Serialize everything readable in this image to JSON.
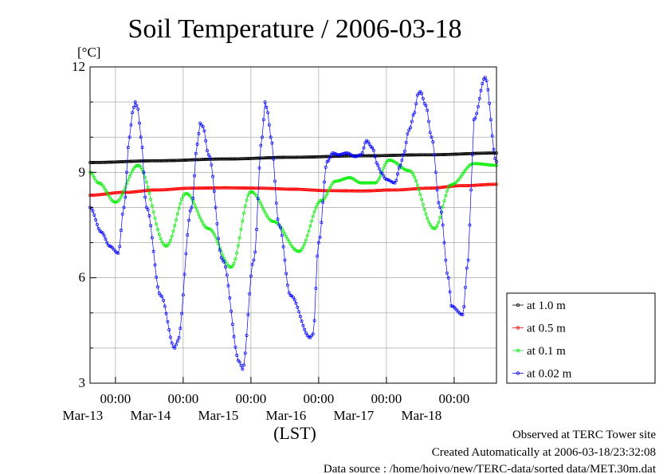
{
  "chart_data": {
    "type": "line",
    "title": "Soil Temperature / 2006-03-18",
    "ylabel": "[°C]",
    "xlabel": "(LST)",
    "ylim": [
      3,
      12
    ],
    "yticks": [
      "3",
      "6",
      "9",
      "12"
    ],
    "xlim": [
      0,
      144
    ],
    "x_unit": "hours since 2006-03-12 15:00 LST",
    "xticks": [
      {
        "x": 9,
        "time": "00:00",
        "date": "Mar-13"
      },
      {
        "x": 33,
        "time": "00:00",
        "date": "Mar-14"
      },
      {
        "x": 57,
        "time": "00:00",
        "date": "Mar-15"
      },
      {
        "x": 81,
        "time": "00:00",
        "date": "Mar-16"
      },
      {
        "x": 105,
        "time": "00:00",
        "date": "Mar-17"
      },
      {
        "x": 129,
        "time": "00:00",
        "date": "Mar-18"
      }
    ],
    "grid": true,
    "legend_position": "right-bottom",
    "series": [
      {
        "name": "at 1.0 m",
        "color": "#000000",
        "x": [
          0,
          24,
          48,
          72,
          96,
          120,
          144
        ],
        "y": [
          9.28,
          9.33,
          9.38,
          9.43,
          9.47,
          9.5,
          9.55
        ]
      },
      {
        "name": "at 0.5 m",
        "color": "#ff0000",
        "x": [
          0,
          12,
          24,
          36,
          48,
          60,
          72,
          84,
          96,
          108,
          120,
          132,
          144
        ],
        "y": [
          8.35,
          8.43,
          8.5,
          8.55,
          8.56,
          8.55,
          8.52,
          8.48,
          8.47,
          8.5,
          8.55,
          8.62,
          8.66
        ]
      },
      {
        "name": "at 0.1 m",
        "color": "#00ee00",
        "x": [
          0,
          3,
          9,
          17,
          27,
          34,
          42,
          50,
          57,
          65,
          74,
          82,
          87,
          92,
          96,
          101,
          106,
          113,
          122,
          128,
          136,
          144
        ],
        "y": [
          9.0,
          8.7,
          8.15,
          9.2,
          6.9,
          8.4,
          7.4,
          6.3,
          8.45,
          7.6,
          6.75,
          8.2,
          8.75,
          8.85,
          8.7,
          8.7,
          9.35,
          9.05,
          7.4,
          8.65,
          9.25,
          9.2
        ]
      },
      {
        "name": "at 0.02 m",
        "color": "#0000ff",
        "x": [
          0,
          4,
          7,
          10,
          12,
          14,
          15,
          16,
          17,
          18,
          20,
          25,
          30,
          31,
          36,
          38,
          39,
          40,
          42,
          47,
          53,
          54,
          58,
          61,
          62,
          63,
          64,
          67,
          71,
          78,
          79,
          81,
          84,
          86,
          88,
          91,
          94,
          96,
          98,
          100,
          102,
          103,
          105,
          108,
          110,
          111,
          113,
          115,
          116,
          117,
          119,
          121,
          124,
          127,
          128,
          132,
          134,
          135,
          136,
          140,
          144
        ],
        "y": [
          8.0,
          7.3,
          6.9,
          6.7,
          8.0,
          10.0,
          10.7,
          11.0,
          10.8,
          10.0,
          8.0,
          5.5,
          4.0,
          4.2,
          8.0,
          9.8,
          10.4,
          10.3,
          9.5,
          6.5,
          3.6,
          3.4,
          6.5,
          10.0,
          11.0,
          10.7,
          10.0,
          7.5,
          5.5,
          4.3,
          4.4,
          7.0,
          9.3,
          9.55,
          9.5,
          9.55,
          9.45,
          9.5,
          9.9,
          9.7,
          9.2,
          9.0,
          8.8,
          8.7,
          9.2,
          9.5,
          10.2,
          10.7,
          11.2,
          11.3,
          10.9,
          10.0,
          8.0,
          6.0,
          5.2,
          4.95,
          6.5,
          8.5,
          10.5,
          11.7,
          9.3
        ]
      }
    ]
  },
  "footer": {
    "line1": "Observed at TERC Tower site",
    "line2": "Created Automatically at 2006-03-18/23:32:08",
    "line3": "Data source : /home/hoivo/new/TERC-data/sorted  data/MET.30m.dat"
  }
}
